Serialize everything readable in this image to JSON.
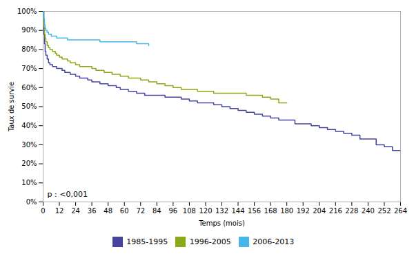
{
  "chart_data": {
    "type": "step",
    "xlabel": "Temps (mois)",
    "ylabel": "Taux de survie",
    "annotation": "p : <0,001",
    "xlim": [
      0,
      264
    ],
    "ylim": [
      0,
      1.0
    ],
    "xticks": [
      0,
      12,
      24,
      36,
      48,
      60,
      72,
      84,
      96,
      108,
      120,
      132,
      144,
      156,
      168,
      180,
      192,
      204,
      216,
      228,
      240,
      252,
      264
    ],
    "yticks": [
      {
        "value": 0.0,
        "label": "0%"
      },
      {
        "value": 0.1,
        "label": "10%"
      },
      {
        "value": 0.2,
        "label": "20%"
      },
      {
        "value": 0.3,
        "label": "30%"
      },
      {
        "value": 0.4,
        "label": "40%"
      },
      {
        "value": 0.5,
        "label": "50%"
      },
      {
        "value": 0.6,
        "label": "60%"
      },
      {
        "value": 0.7,
        "label": "70%"
      },
      {
        "value": 0.8,
        "label": "80%"
      },
      {
        "value": 0.9,
        "label": "90%"
      },
      {
        "value": 1.0,
        "label": "100%"
      }
    ],
    "grid": false,
    "legend": "bottom",
    "series": [
      {
        "name": "1985-1995",
        "color": "#4545a0",
        "x": [
          0,
          0.5,
          1,
          1.5,
          2,
          3,
          4,
          5,
          6,
          7,
          8,
          9,
          10,
          11,
          12,
          14,
          16,
          18,
          20,
          22,
          24,
          27,
          30,
          33,
          36,
          39,
          42,
          45,
          48,
          51,
          54,
          57,
          60,
          63,
          66,
          69,
          72,
          75,
          78,
          81,
          84,
          90,
          96,
          102,
          108,
          114,
          120,
          126,
          132,
          138,
          144,
          150,
          156,
          162,
          168,
          174,
          180,
          186,
          192,
          198,
          204,
          210,
          216,
          222,
          228,
          234,
          240,
          246,
          252,
          258,
          264
        ],
        "values": [
          1.0,
          0.88,
          0.83,
          0.79,
          0.77,
          0.75,
          0.73,
          0.72,
          0.72,
          0.71,
          0.71,
          0.71,
          0.7,
          0.7,
          0.7,
          0.69,
          0.68,
          0.68,
          0.67,
          0.67,
          0.66,
          0.65,
          0.65,
          0.64,
          0.63,
          0.63,
          0.62,
          0.62,
          0.61,
          0.61,
          0.6,
          0.59,
          0.59,
          0.58,
          0.58,
          0.57,
          0.57,
          0.56,
          0.56,
          0.56,
          0.56,
          0.55,
          0.55,
          0.54,
          0.53,
          0.52,
          0.52,
          0.51,
          0.5,
          0.49,
          0.48,
          0.47,
          0.46,
          0.45,
          0.44,
          0.43,
          0.43,
          0.41,
          0.41,
          0.4,
          0.39,
          0.38,
          0.37,
          0.36,
          0.35,
          0.33,
          0.33,
          0.3,
          0.29,
          0.27,
          0.27
        ]
      },
      {
        "name": "1996-2005",
        "color": "#8aaa18",
        "x": [
          0,
          0.5,
          1,
          1.5,
          2,
          3,
          4,
          5,
          6,
          7,
          8,
          9,
          10,
          11,
          12,
          14,
          16,
          18,
          20,
          22,
          24,
          27,
          30,
          33,
          36,
          39,
          42,
          45,
          48,
          51,
          54,
          57,
          60,
          63,
          66,
          69,
          72,
          78,
          84,
          90,
          96,
          102,
          108,
          114,
          120,
          126,
          132,
          138,
          144,
          150,
          156,
          162,
          168,
          174,
          180
        ],
        "values": [
          1.0,
          0.92,
          0.88,
          0.86,
          0.84,
          0.82,
          0.81,
          0.8,
          0.8,
          0.79,
          0.79,
          0.78,
          0.77,
          0.77,
          0.76,
          0.75,
          0.75,
          0.74,
          0.73,
          0.73,
          0.72,
          0.71,
          0.71,
          0.71,
          0.7,
          0.69,
          0.69,
          0.68,
          0.68,
          0.67,
          0.67,
          0.66,
          0.66,
          0.65,
          0.65,
          0.65,
          0.64,
          0.63,
          0.62,
          0.61,
          0.6,
          0.59,
          0.59,
          0.58,
          0.58,
          0.57,
          0.57,
          0.57,
          0.57,
          0.56,
          0.56,
          0.55,
          0.54,
          0.52,
          0.52
        ]
      },
      {
        "name": "2006-2013",
        "color": "#47b5e8",
        "x": [
          0,
          0.5,
          1,
          1.5,
          2,
          3,
          4,
          5,
          6,
          8,
          10,
          12,
          15,
          18,
          21,
          24,
          30,
          36,
          42,
          48,
          54,
          60,
          63,
          66,
          69,
          72,
          75,
          78
        ],
        "values": [
          1.0,
          0.96,
          0.93,
          0.91,
          0.9,
          0.89,
          0.88,
          0.88,
          0.87,
          0.87,
          0.86,
          0.86,
          0.86,
          0.85,
          0.85,
          0.85,
          0.85,
          0.85,
          0.84,
          0.84,
          0.84,
          0.84,
          0.84,
          0.84,
          0.83,
          0.83,
          0.83,
          0.82
        ]
      }
    ]
  }
}
